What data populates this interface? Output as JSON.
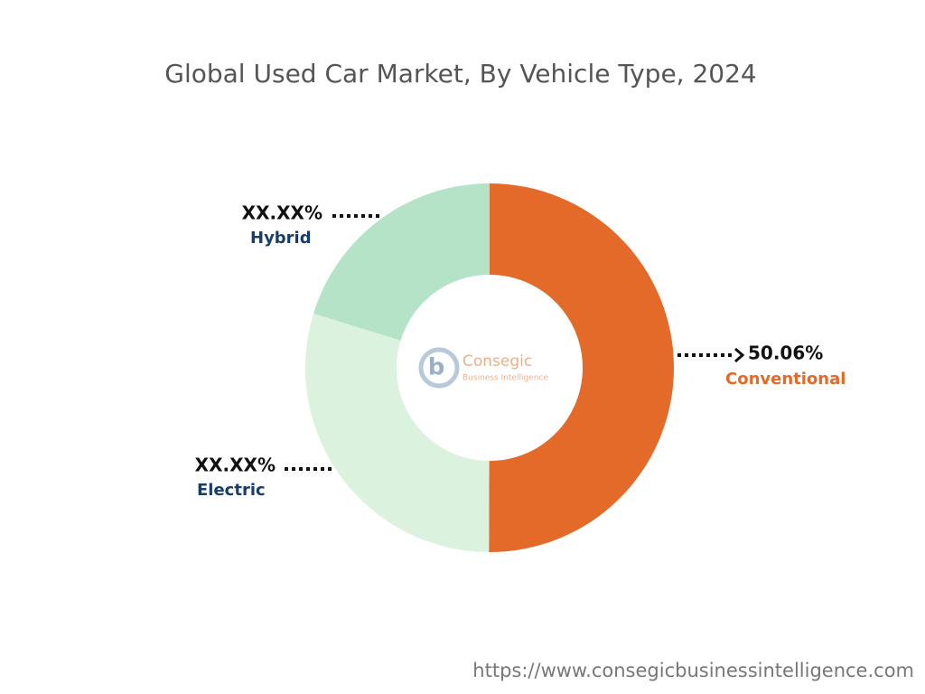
{
  "chart_data": {
    "type": "donut",
    "title": "Global Used Car Market, By Vehicle Type, 2024",
    "categories": [
      "Conventional",
      "Electric",
      "Hybrid"
    ],
    "values": [
      50.06,
      29.69,
      20.25
    ],
    "value_labels": [
      "50.06%",
      "XX.XX%",
      "XX.XX%"
    ],
    "colors": [
      "#e36a28",
      "#dbf2df",
      "#b5e3c8"
    ],
    "label_colors": [
      "#e36a28",
      "#173e6a",
      "#173e6a"
    ]
  },
  "logo": {
    "name": "Consegic",
    "tagline": "Business Intelligence"
  },
  "footer": {
    "url": "https://www.consegicbusinessintelligence.com"
  }
}
